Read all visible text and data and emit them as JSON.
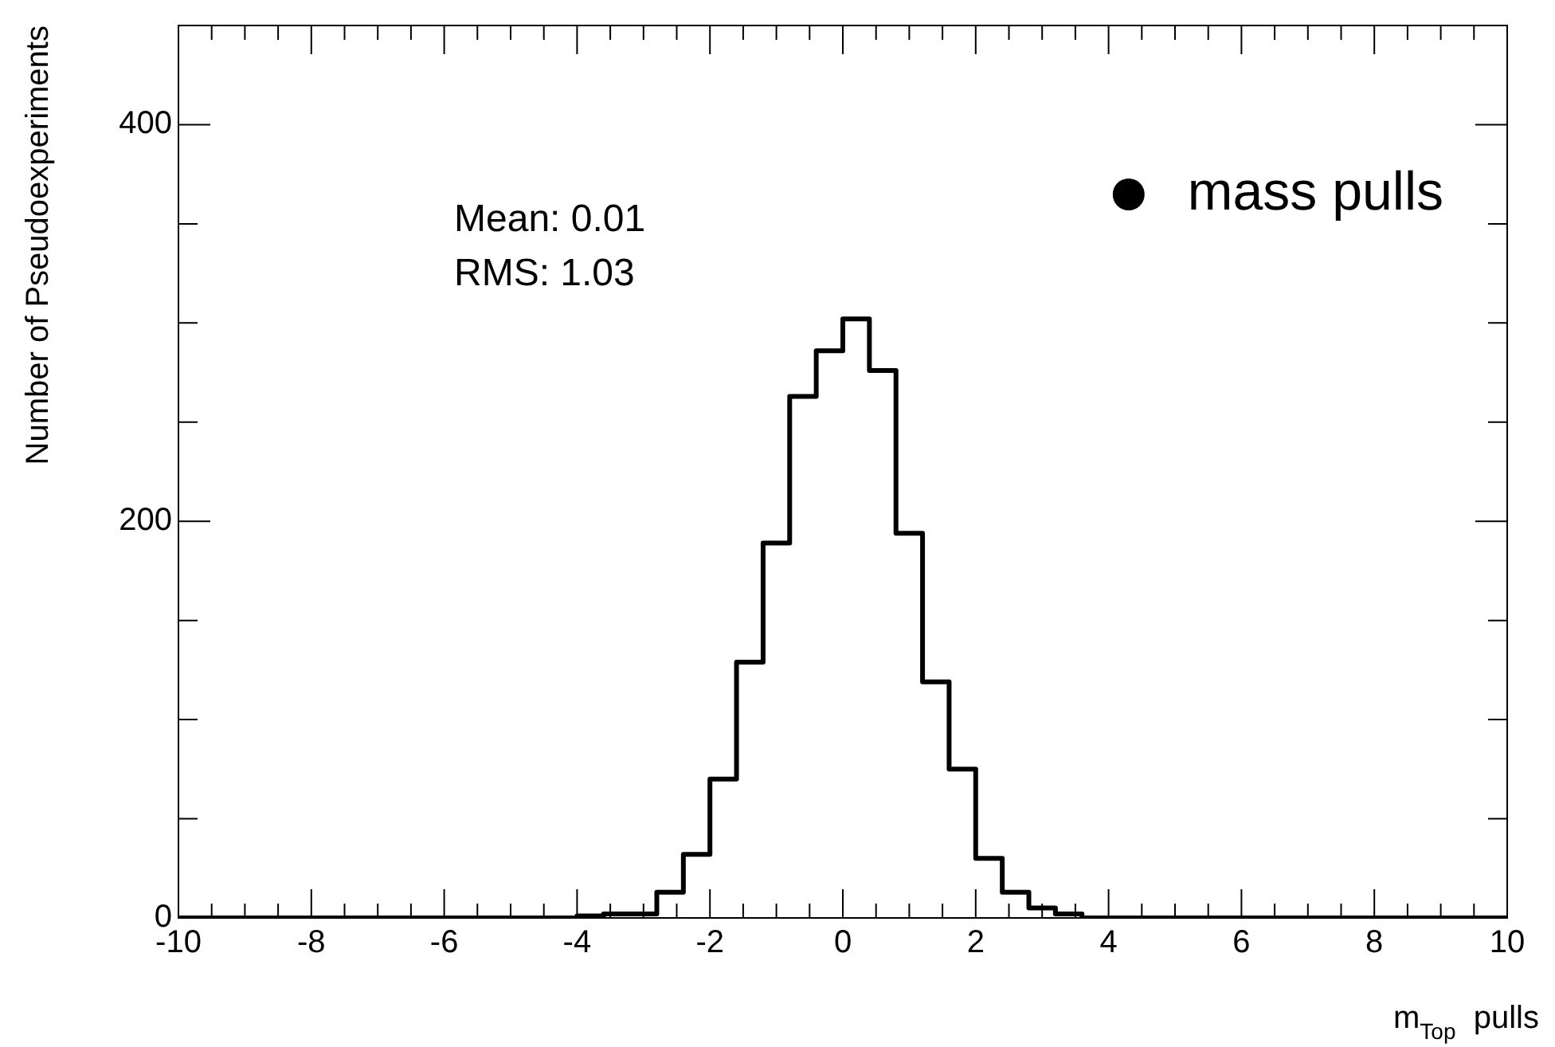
{
  "chart_data": {
    "type": "histogram",
    "xlabel": "m$_{Top}$  pulls",
    "ylabel": "Number of Pseudoexperiments",
    "annotations": [
      "Mean: 0.01",
      "RMS: 1.03"
    ],
    "bins": [
      -10,
      -9.6,
      -9.2,
      -8.8,
      -8.4,
      -8,
      -7.6,
      -7.2,
      -6.8,
      -6.4,
      -6,
      -5.6,
      -5.2,
      -4.8,
      -4.4,
      -4,
      -3.6,
      -3.2,
      -2.8,
      -2.4,
      -2,
      -1.6,
      -1.2,
      -0.8,
      -0.4,
      0,
      0.4,
      0.8,
      1.2,
      1.6,
      2,
      2.4,
      2.8,
      3.2,
      3.6,
      4,
      4.4,
      4.8,
      5.2,
      5.6,
      6,
      6.4,
      6.8,
      7.2,
      7.6,
      8,
      8.4,
      8.8,
      9.2,
      9.6,
      10
    ],
    "series": [
      {
        "name": "mass pulls",
        "color": "#000000",
        "values": [
          0,
          0,
          0,
          0,
          0,
          0,
          0,
          0,
          0,
          0,
          0,
          0,
          0,
          0,
          0,
          1,
          2,
          2,
          13,
          32,
          70,
          129,
          189,
          263,
          286,
          302,
          276,
          194,
          119,
          75,
          30,
          13,
          5,
          2,
          0,
          0,
          0,
          0,
          0,
          0,
          0,
          0,
          0,
          0,
          0,
          0,
          0,
          0,
          0,
          0
        ]
      }
    ],
    "marker": "circle",
    "legend": "top right",
    "grid": false,
    "xlim": [
      -10,
      10
    ],
    "ylim": [
      0,
      450
    ],
    "xticks": [
      -10,
      {
        "value": -9.5,
        "label": null
      },
      {
        "value": -9,
        "label": null
      },
      {
        "value": -8.5,
        "label": null
      },
      -8,
      {
        "value": -7.5,
        "label": null
      },
      {
        "value": -7,
        "label": null
      },
      {
        "value": -6.5,
        "label": null
      },
      -6,
      {
        "value": -5.5,
        "label": null
      },
      {
        "value": -5,
        "label": null
      },
      {
        "value": -4.5,
        "label": null
      },
      -4,
      {
        "value": -3.5,
        "label": null
      },
      {
        "value": -3,
        "label": null
      },
      {
        "value": -2.5,
        "label": null
      },
      -2,
      {
        "value": -1.5,
        "label": null
      },
      {
        "value": -1,
        "label": null
      },
      {
        "value": -0.5,
        "label": null
      },
      0,
      {
        "value": 0.5,
        "label": null
      },
      {
        "value": 1,
        "label": null
      },
      {
        "value": 1.5,
        "label": null
      },
      2,
      {
        "value": 2.5,
        "label": null
      },
      {
        "value": 3,
        "label": null
      },
      {
        "value": 3.5,
        "label": null
      },
      4,
      {
        "value": 4.5,
        "label": null
      },
      {
        "value": 5,
        "label": null
      },
      {
        "value": 5.5,
        "label": null
      },
      6,
      {
        "value": 6.5,
        "label": null
      },
      {
        "value": 7,
        "label": null
      },
      {
        "value": 7.5,
        "label": null
      },
      8,
      {
        "value": 8.5,
        "label": null
      },
      {
        "value": 9,
        "label": null
      },
      {
        "value": 9.5,
        "label": null
      },
      10
    ],
    "yticks": [
      0,
      {
        "value": 50,
        "label": null
      },
      {
        "value": 100,
        "label": null
      },
      {
        "value": 150,
        "label": null
      },
      200,
      {
        "value": 250,
        "label": null
      },
      {
        "value": 300,
        "label": null
      },
      {
        "value": 350,
        "label": null
      },
      400
    ]
  }
}
